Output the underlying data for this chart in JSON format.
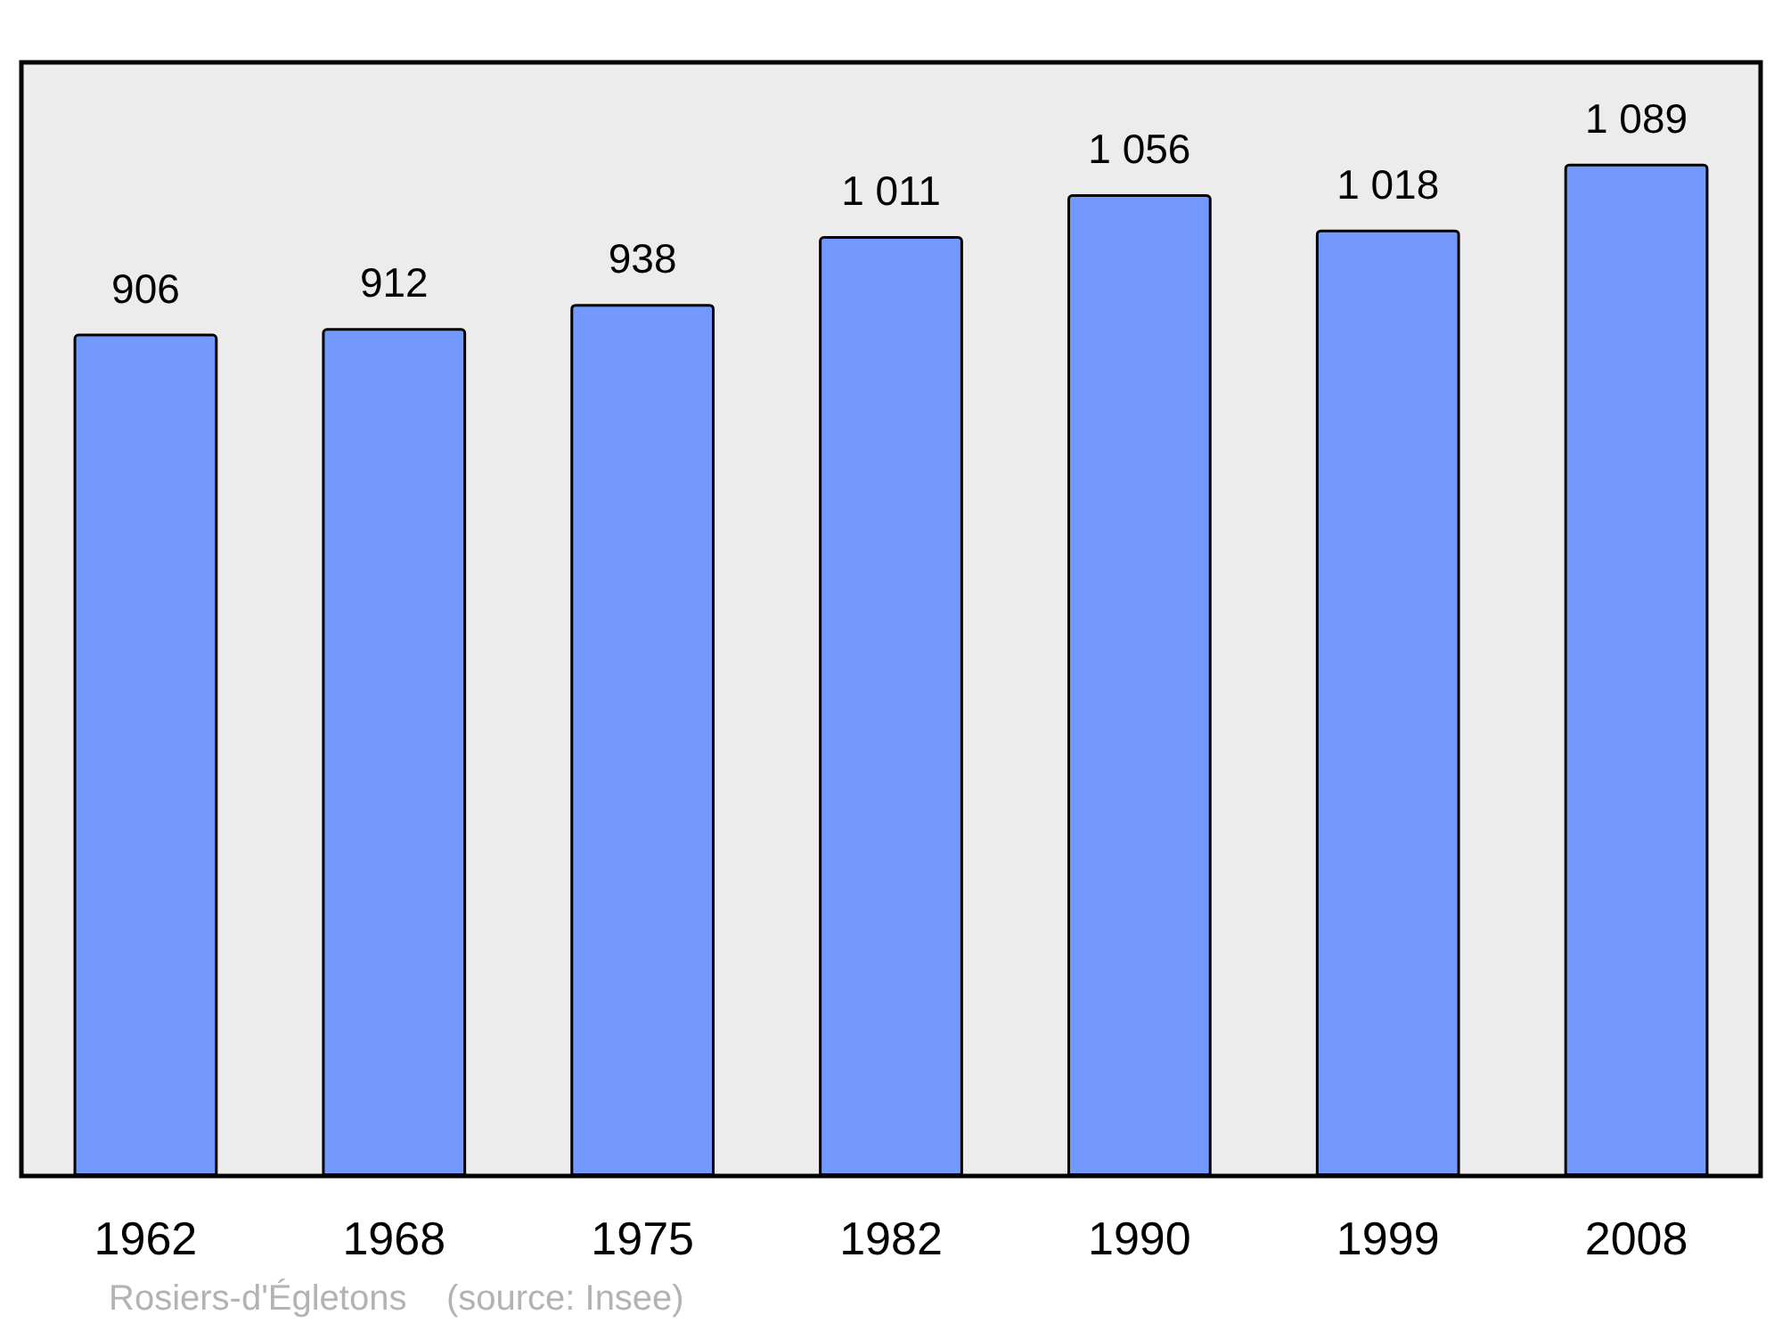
{
  "chart_data": {
    "type": "bar",
    "categories": [
      "1962",
      "1968",
      "1975",
      "1982",
      "1990",
      "1999",
      "2008"
    ],
    "values": [
      906,
      912,
      938,
      1011,
      1056,
      1018,
      1089
    ],
    "value_labels": [
      "906",
      "912",
      "938",
      "1 011",
      "1 056",
      "1 018",
      "1 089"
    ],
    "color": "#7399ff",
    "annotations": [
      "Rosiers-d'Égletons    (source: Insee)"
    ]
  }
}
